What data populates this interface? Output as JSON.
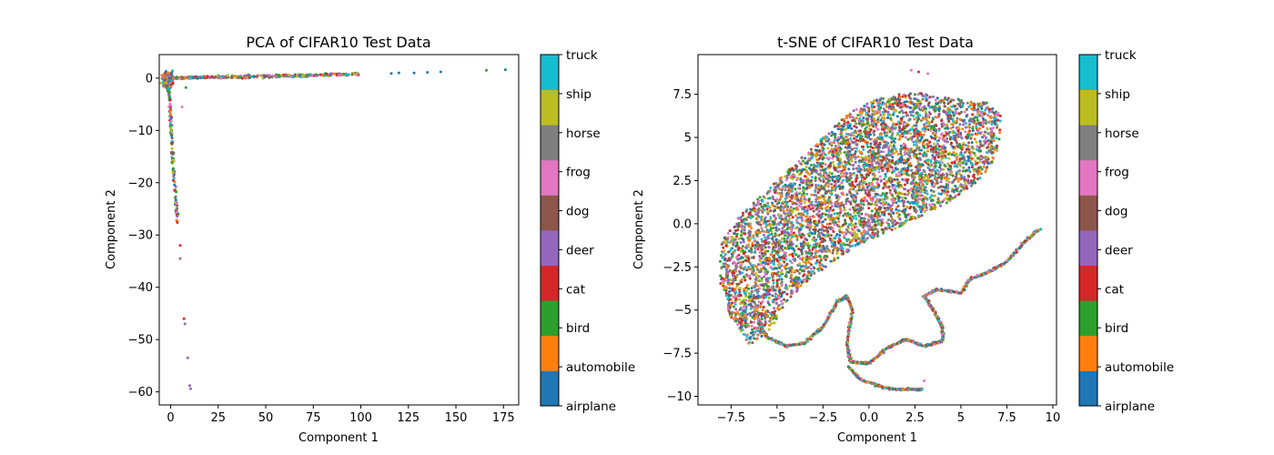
{
  "classes": [
    "airplane",
    "automobile",
    "bird",
    "cat",
    "deer",
    "dog",
    "frog",
    "horse",
    "ship",
    "truck"
  ],
  "class_colors": [
    "#1f77b4",
    "#ff7f0e",
    "#2ca02c",
    "#d62728",
    "#9467bd",
    "#8c564b",
    "#e377c2",
    "#7f7f7f",
    "#bcbd22",
    "#17becf"
  ],
  "chart_data": [
    {
      "type": "scatter",
      "title": "PCA of CIFAR10 Test Data",
      "xlabel": "Component 1",
      "ylabel": "Component 2",
      "xlim": [
        -6,
        183
      ],
      "ylim": [
        -62.5,
        4.5
      ],
      "xticks": [
        0,
        25,
        50,
        75,
        100,
        125,
        150,
        175
      ],
      "yticks": [
        0,
        -10,
        -20,
        -30,
        -40,
        -50,
        -60
      ],
      "grid": false,
      "colorbar": "right",
      "structure": [
        {
          "shape": "horizontal-arm",
          "x": [
            -3,
            0,
            25,
            50,
            75,
            100,
            125,
            150,
            176
          ],
          "y": [
            0,
            0,
            0.2,
            0.35,
            0.55,
            0.8,
            1.0,
            1.3,
            1.6
          ]
        },
        {
          "shape": "vertical-arm",
          "x": [
            -3,
            -1,
            0,
            1,
            2,
            3,
            4,
            5,
            7,
            9,
            10
          ],
          "y": [
            0,
            -2,
            -8,
            -15,
            -20,
            -25,
            -30,
            -35,
            -46,
            -53,
            -59
          ]
        }
      ],
      "outliers": [
        {
          "x": 176,
          "y": 1.6,
          "class": "airplane"
        },
        {
          "x": 166,
          "y": 1.5,
          "class": "bird"
        },
        {
          "x": 142,
          "y": 1.2,
          "class": "airplane"
        },
        {
          "x": 135,
          "y": 1.1,
          "class": "airplane"
        },
        {
          "x": 128,
          "y": 1.0,
          "class": "airplane"
        },
        {
          "x": 120,
          "y": 1.0,
          "class": "airplane"
        },
        {
          "x": 116,
          "y": 0.9,
          "class": "airplane"
        },
        {
          "x": 6,
          "y": -5.5,
          "class": "frog"
        },
        {
          "x": 8,
          "y": -1.8,
          "class": "bird"
        },
        {
          "x": 3,
          "y": -24,
          "class": "frog"
        },
        {
          "x": 4,
          "y": -26,
          "class": "bird"
        },
        {
          "x": 5,
          "y": -32,
          "class": "cat"
        },
        {
          "x": 5,
          "y": -34.5,
          "class": "deer"
        },
        {
          "x": 7,
          "y": -46,
          "class": "cat"
        },
        {
          "x": 7.5,
          "y": -47,
          "class": "deer"
        },
        {
          "x": 9,
          "y": -53.5,
          "class": "deer"
        },
        {
          "x": 10,
          "y": -58.8,
          "class": "deer"
        },
        {
          "x": 10.5,
          "y": -59.4,
          "class": "deer"
        }
      ]
    },
    {
      "type": "scatter",
      "title": "t-SNE of CIFAR10 Test Data",
      "xlabel": "Component 1",
      "ylabel": "Component 2",
      "xlim": [
        -9.3,
        10.2
      ],
      "ylim": [
        -10.5,
        9.8
      ],
      "xticks": [
        -7.5,
        -5.0,
        -2.5,
        0.0,
        2.5,
        5.0,
        7.5,
        10.0
      ],
      "yticks": [
        7.5,
        5.0,
        2.5,
        0.0,
        -2.5,
        -5.0,
        -7.5,
        -10.0
      ],
      "grid": false,
      "colorbar": "right",
      "cloud_outline": [
        [
          -8.2,
          -3.0
        ],
        [
          -8.0,
          -1.0
        ],
        [
          -7.0,
          0.5
        ],
        [
          -5.0,
          2.5
        ],
        [
          -3.0,
          4.5
        ],
        [
          -1.0,
          6.5
        ],
        [
          1.0,
          7.5
        ],
        [
          3.0,
          7.6
        ],
        [
          5.0,
          7.2
        ],
        [
          6.5,
          7.0
        ],
        [
          7.2,
          6.2
        ],
        [
          7.0,
          4.0
        ],
        [
          6.0,
          2.5
        ],
        [
          4.0,
          1.0
        ],
        [
          1.0,
          -0.5
        ],
        [
          -1.0,
          -1.5
        ],
        [
          -3.0,
          -3.0
        ],
        [
          -4.5,
          -4.5
        ],
        [
          -5.5,
          -6.5
        ],
        [
          -6.5,
          -7.0
        ],
        [
          -7.5,
          -5.5
        ],
        [
          -8.2,
          -3.0
        ]
      ],
      "curve": [
        [
          -6.0,
          -5.8
        ],
        [
          -5.5,
          -6.6
        ],
        [
          -4.5,
          -7.1
        ],
        [
          -3.5,
          -6.9
        ],
        [
          -2.5,
          -6.0
        ],
        [
          -1.7,
          -4.5
        ],
        [
          -1.2,
          -4.2
        ],
        [
          -0.9,
          -5.0
        ],
        [
          -1.2,
          -7.0
        ],
        [
          -1.0,
          -8.0
        ],
        [
          0.0,
          -8.1
        ],
        [
          1.0,
          -7.2
        ],
        [
          2.0,
          -6.7
        ],
        [
          3.0,
          -7.1
        ],
        [
          4.0,
          -6.8
        ],
        [
          4.0,
          -6.0
        ],
        [
          3.5,
          -5.0
        ],
        [
          3.0,
          -4.2
        ],
        [
          3.7,
          -3.8
        ],
        [
          5.0,
          -4.0
        ],
        [
          5.5,
          -3.2
        ],
        [
          6.5,
          -2.8
        ],
        [
          7.5,
          -2.2
        ],
        [
          8.5,
          -1.0
        ],
        [
          9.3,
          -0.3
        ]
      ],
      "curve_bottom": [
        [
          -1.1,
          -8.3
        ],
        [
          -0.5,
          -9.0
        ],
        [
          0.5,
          -9.4
        ],
        [
          1.5,
          -9.6
        ],
        [
          2.5,
          -9.6
        ],
        [
          2.9,
          -9.6
        ]
      ],
      "outliers": [
        {
          "x": 2.3,
          "y": 8.9,
          "class": "frog"
        },
        {
          "x": 2.7,
          "y": 8.8,
          "class": "cat"
        },
        {
          "x": 3.2,
          "y": 8.7,
          "class": "frog"
        },
        {
          "x": 3.0,
          "y": -9.1,
          "class": "frog"
        }
      ]
    }
  ]
}
